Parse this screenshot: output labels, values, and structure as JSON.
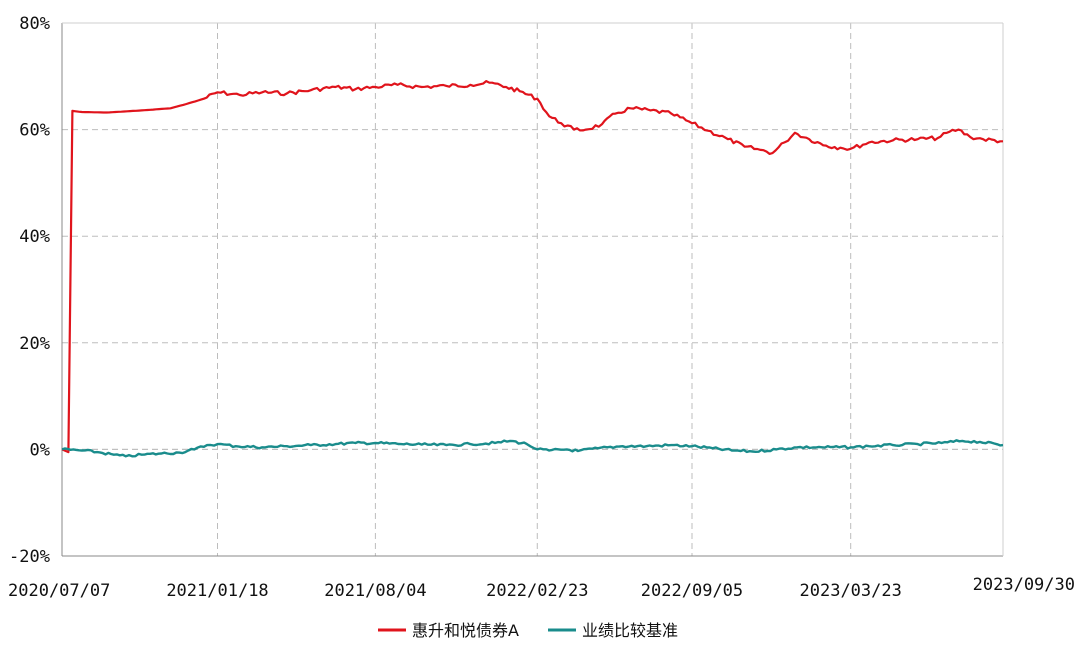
{
  "chart_data": {
    "type": "line",
    "title": "",
    "xlabel": "",
    "ylabel": "",
    "x_ticks": [
      "2020/07/07",
      "2021/01/18",
      "2021/08/04",
      "2022/02/23",
      "2022/09/05",
      "2023/03/23",
      "2023/09/30"
    ],
    "y_ticks": [
      "80%",
      "60%",
      "40%",
      "20%",
      "0%",
      "-20%"
    ],
    "ylim": [
      -20,
      80
    ],
    "xlim": [
      "2020/07/07",
      "2023/09/30"
    ],
    "y_unit": "%",
    "grid": true,
    "legend_position": "bottom",
    "series": [
      {
        "name": "惠升和悦债券A",
        "color": "#e0141c",
        "points": [
          [
            "2020/07/07",
            0
          ],
          [
            "2020/07/15",
            -0.5
          ],
          [
            "2020/07/20",
            63.5
          ],
          [
            "2020/08/01",
            63.3
          ],
          [
            "2020/09/01",
            63.2
          ],
          [
            "2020/10/15",
            63.6
          ],
          [
            "2020/11/20",
            64.0
          ],
          [
            "2020/12/10",
            64.8
          ],
          [
            "2021/01/01",
            65.8
          ],
          [
            "2021/01/18",
            67.0
          ],
          [
            "2021/02/15",
            66.5
          ],
          [
            "2021/03/15",
            67.0
          ],
          [
            "2021/04/15",
            66.8
          ],
          [
            "2021/05/15",
            67.4
          ],
          [
            "2021/06/15",
            68.0
          ],
          [
            "2021/07/10",
            67.6
          ],
          [
            "2021/08/04",
            68.0
          ],
          [
            "2021/09/01",
            68.4
          ],
          [
            "2021/10/01",
            68.0
          ],
          [
            "2021/11/01",
            68.2
          ],
          [
            "2021/12/01",
            68.4
          ],
          [
            "2021/12/25",
            68.8
          ],
          [
            "2022/01/15",
            68.0
          ],
          [
            "2022/02/01",
            67.2
          ],
          [
            "2022/02/23",
            65.8
          ],
          [
            "2022/03/10",
            62.5
          ],
          [
            "2022/03/25",
            61.2
          ],
          [
            "2022/04/10",
            60.0
          ],
          [
            "2022/04/25",
            60.0
          ],
          [
            "2022/05/15",
            61.0
          ],
          [
            "2022/06/01",
            63.0
          ],
          [
            "2022/06/20",
            64.0
          ],
          [
            "2022/07/15",
            63.6
          ],
          [
            "2022/08/10",
            63.0
          ],
          [
            "2022/09/05",
            61.2
          ],
          [
            "2022/09/25",
            59.8
          ],
          [
            "2022/10/20",
            58.2
          ],
          [
            "2022/11/10",
            56.8
          ],
          [
            "2022/11/30",
            56.2
          ],
          [
            "2022/12/15",
            55.6
          ],
          [
            "2022/12/30",
            57.6
          ],
          [
            "2023/01/12",
            59.4
          ],
          [
            "2023/01/30",
            58.2
          ],
          [
            "2023/02/20",
            57.0
          ],
          [
            "2023/03/10",
            56.6
          ],
          [
            "2023/03/23",
            56.4
          ],
          [
            "2023/04/15",
            57.6
          ],
          [
            "2023/05/15",
            58.0
          ],
          [
            "2023/06/15",
            58.2
          ],
          [
            "2023/07/10",
            58.4
          ],
          [
            "2023/07/25",
            59.6
          ],
          [
            "2023/08/05",
            60.0
          ],
          [
            "2023/08/20",
            58.6
          ],
          [
            "2023/09/05",
            58.2
          ],
          [
            "2023/09/30",
            57.8
          ]
        ]
      },
      {
        "name": "业绩比较基准",
        "color": "#1a8c8c",
        "points": [
          [
            "2020/07/07",
            0
          ],
          [
            "2020/08/01",
            -0.2
          ],
          [
            "2020/08/20",
            -0.5
          ],
          [
            "2020/09/10",
            -1.0
          ],
          [
            "2020/09/25",
            -1.3
          ],
          [
            "2020/10/15",
            -1.0
          ],
          [
            "2020/11/05",
            -0.8
          ],
          [
            "2020/12/01",
            -0.6
          ],
          [
            "2020/12/20",
            0.0
          ],
          [
            "2021/01/05",
            0.8
          ],
          [
            "2021/01/18",
            1.0
          ],
          [
            "2021/02/10",
            0.6
          ],
          [
            "2021/03/15",
            0.4
          ],
          [
            "2021/04/15",
            0.6
          ],
          [
            "2021/05/15",
            0.8
          ],
          [
            "2021/06/15",
            1.0
          ],
          [
            "2021/07/10",
            1.2
          ],
          [
            "2021/08/04",
            1.2
          ],
          [
            "2021/09/05",
            1.0
          ],
          [
            "2021/10/01",
            0.9
          ],
          [
            "2021/11/01",
            0.8
          ],
          [
            "2021/12/01",
            1.0
          ],
          [
            "2022/01/01",
            1.2
          ],
          [
            "2022/01/20",
            1.6
          ],
          [
            "2022/02/10",
            1.0
          ],
          [
            "2022/02/23",
            0.0
          ],
          [
            "2022/03/10",
            -0.2
          ],
          [
            "2022/04/01",
            0.0
          ],
          [
            "2022/04/15",
            -0.3
          ],
          [
            "2022/05/10",
            0.2
          ],
          [
            "2022/06/10",
            0.6
          ],
          [
            "2022/07/10",
            0.6
          ],
          [
            "2022/08/10",
            0.8
          ],
          [
            "2022/09/05",
            0.6
          ],
          [
            "2022/10/01",
            0.2
          ],
          [
            "2022/10/25",
            -0.2
          ],
          [
            "2022/11/20",
            -0.4
          ],
          [
            "2022/12/20",
            0.0
          ],
          [
            "2023/01/15",
            0.4
          ],
          [
            "2023/02/15",
            0.4
          ],
          [
            "2023/03/23",
            0.4
          ],
          [
            "2023/04/15",
            0.6
          ],
          [
            "2023/05/15",
            0.8
          ],
          [
            "2023/06/15",
            1.0
          ],
          [
            "2023/07/15",
            1.2
          ],
          [
            "2023/08/10",
            1.6
          ],
          [
            "2023/09/01",
            1.4
          ],
          [
            "2023/09/30",
            0.8
          ]
        ]
      }
    ]
  }
}
